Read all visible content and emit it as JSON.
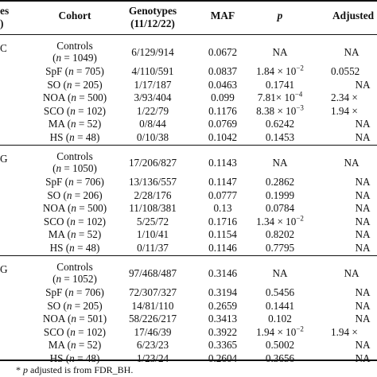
{
  "header": {
    "col0_line1": "es",
    "col0_line2": ")",
    "cohort": "Cohort",
    "genotypes_line1": "Genotypes",
    "genotypes_line2": "(11/12/22)",
    "maf": "MAF",
    "p": "p",
    "adjusted": "Adjusted"
  },
  "groups": [
    {
      "label": "C",
      "rows": [
        {
          "cohort": "Controls",
          "n": "(n = 1049)",
          "genotypes": "6/129/914",
          "maf": "0.0672",
          "p": "NA",
          "adj": "NA"
        },
        {
          "cohort": "SpF",
          "n": "(n = 705)",
          "genotypes": "4/110/591",
          "maf": "0.0837",
          "p": "1.84 × 10−2",
          "adj": "0.0552"
        },
        {
          "cohort": "SO",
          "n": "(n = 205)",
          "genotypes": "1/17/187",
          "maf": "0.0463",
          "p": "0.1741",
          "adj": "NA"
        },
        {
          "cohort": "NOA",
          "n": "(n = 500)",
          "genotypes": "3/93/404",
          "maf": "0.099",
          "p": "7.81× 10−4",
          "adj": "2.34 ×"
        },
        {
          "cohort": "SCO",
          "n": "(n = 102)",
          "genotypes": "1/22/79",
          "maf": "0.1176",
          "p": "8.38 × 10−3",
          "adj": "1.94 ×"
        },
        {
          "cohort": "MA",
          "n": "(n = 52)",
          "genotypes": "0/8/44",
          "maf": "0.0769",
          "p": "0.6242",
          "adj": "NA"
        },
        {
          "cohort": "HS",
          "n": "(n = 48)",
          "genotypes": "0/10/38",
          "maf": "0.1042",
          "p": "0.1453",
          "adj": "NA"
        }
      ]
    },
    {
      "label": "G",
      "rows": [
        {
          "cohort": "Controls",
          "n": "(n = 1050)",
          "genotypes": "17/206/827",
          "maf": "0.1143",
          "p": "NA",
          "adj": "NA"
        },
        {
          "cohort": "SpF",
          "n": "(n = 706)",
          "genotypes": "13/136/557",
          "maf": "0.1147",
          "p": "0.2862",
          "adj": "NA"
        },
        {
          "cohort": "SO",
          "n": "(n = 206)",
          "genotypes": "2/28/176",
          "maf": "0.0777",
          "p": "0.1999",
          "adj": "NA"
        },
        {
          "cohort": "NOA",
          "n": "(n = 500)",
          "genotypes": "11/108/381",
          "maf": "0.13",
          "p": "0.0784",
          "adj": "NA"
        },
        {
          "cohort": "SCO",
          "n": "(n = 102)",
          "genotypes": "5/25/72",
          "maf": "0.1716",
          "p": "1.34 × 10−2",
          "adj": "NA"
        },
        {
          "cohort": "MA",
          "n": "(n = 52)",
          "genotypes": "1/10/41",
          "maf": "0.1154",
          "p": "0.8202",
          "adj": "NA"
        },
        {
          "cohort": "HS",
          "n": "(n = 48)",
          "genotypes": "0/11/37",
          "maf": "0.1146",
          "p": "0.7795",
          "adj": "NA"
        }
      ]
    },
    {
      "label": "G",
      "rows": [
        {
          "cohort": "Controls",
          "n": "(n = 1052)",
          "genotypes": "97/468/487",
          "maf": "0.3146",
          "p": "NA",
          "adj": "NA"
        },
        {
          "cohort": "SpF",
          "n": "(n = 706)",
          "genotypes": "72/307/327",
          "maf": "0.3194",
          "p": "0.5456",
          "adj": "NA"
        },
        {
          "cohort": "SO",
          "n": "(n = 205)",
          "genotypes": "14/81/110",
          "maf": "0.2659",
          "p": "0.1441",
          "adj": "NA"
        },
        {
          "cohort": "NOA",
          "n": "(n = 501)",
          "genotypes": "58/226/217",
          "maf": "0.3413",
          "p": "0.102",
          "adj": "NA"
        },
        {
          "cohort": "SCO",
          "n": "(n = 102)",
          "genotypes": "17/46/39",
          "maf": "0.3922",
          "p": "1.94 × 10−2",
          "adj": "1.94 ×"
        },
        {
          "cohort": "MA",
          "n": "(n = 52)",
          "genotypes": "6/23/23",
          "maf": "0.3365",
          "p": "0.5002",
          "adj": "NA"
        },
        {
          "cohort": "HS",
          "n": "(n = 48)",
          "genotypes": "1/23/24",
          "maf": "0.2604",
          "p": "0.3656",
          "adj": "NA"
        }
      ]
    }
  ],
  "footnote": "* p adjusted is from FDR_BH."
}
